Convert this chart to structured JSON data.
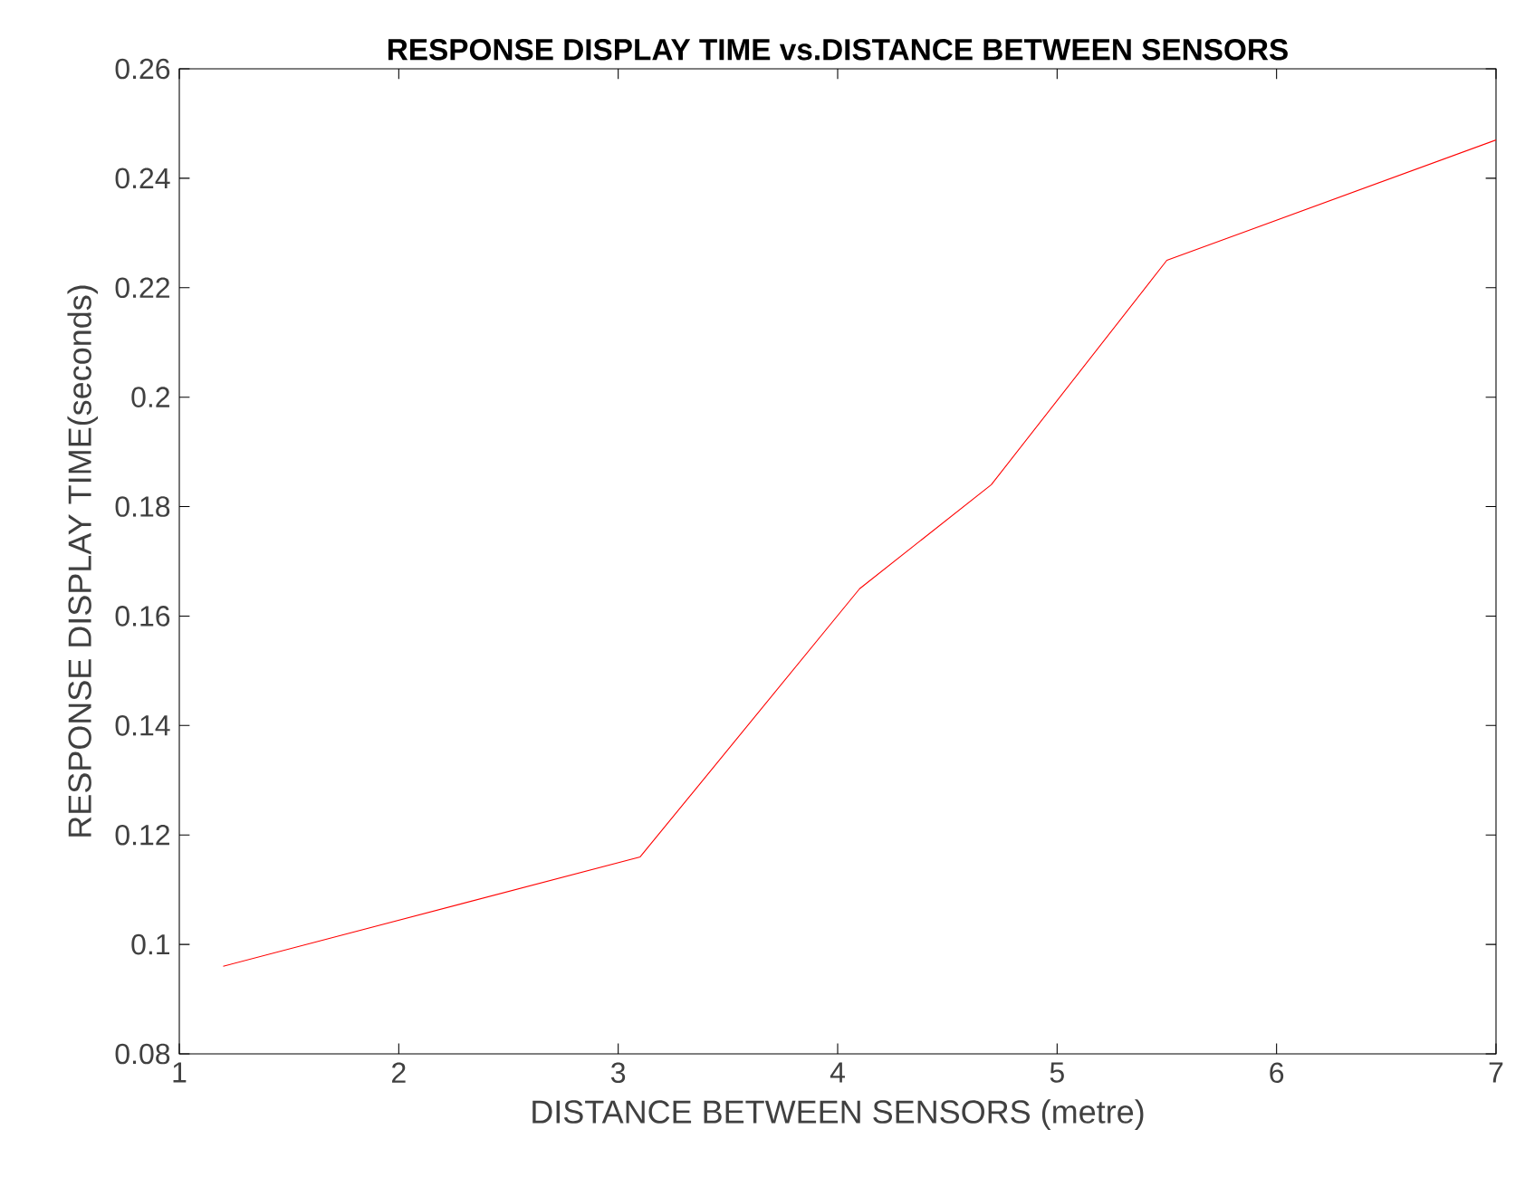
{
  "chart_data": {
    "type": "line",
    "title": "RESPONSE DISPLAY TIME vs.DISTANCE BETWEEN SENSORS",
    "xlabel": "DISTANCE BETWEEN SENSORS (metre)",
    "ylabel": "RESPONSE DISPLAY TIME(seconds)",
    "x": [
      1.2,
      3.1,
      4.1,
      4.7,
      5.5,
      7
    ],
    "series": [
      {
        "color": "#ff0000",
        "values": [
          0.096,
          0.116,
          0.165,
          0.184,
          0.225,
          0.247
        ]
      }
    ],
    "xlim": [
      1,
      7
    ],
    "ylim": [
      0.08,
      0.26
    ],
    "xticks": [
      1,
      2,
      3,
      4,
      5,
      6,
      7
    ],
    "yticks": [
      0.08,
      0.1,
      0.12,
      0.14,
      0.16,
      0.18,
      0.2,
      0.22,
      0.24,
      0.26
    ],
    "marker": "none",
    "line_style": "solid"
  }
}
